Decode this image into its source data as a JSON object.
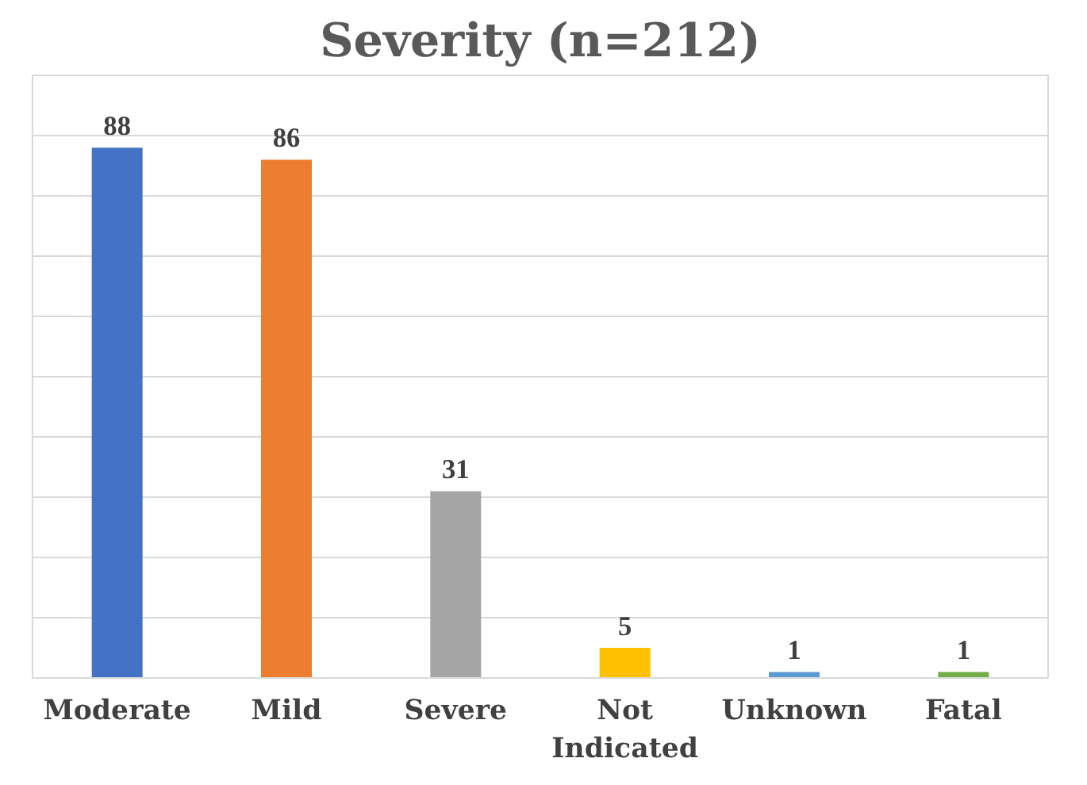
{
  "chart_data": {
    "type": "bar",
    "title": "Severity (n=212)",
    "categories": [
      "Moderate",
      "Mild",
      "Severe",
      "Not\nIndicated",
      "Unknown",
      "Fatal"
    ],
    "values": [
      88,
      86,
      31,
      5,
      1,
      1
    ],
    "colors": [
      "#4472c4",
      "#ed7d31",
      "#a5a5a5",
      "#ffc000",
      "#5b9bd5",
      "#70ad47"
    ],
    "ylim": [
      0,
      100
    ],
    "yticks": [
      {
        "value": 0,
        "label": null
      },
      {
        "value": 10,
        "label": null
      },
      {
        "value": 20,
        "label": null
      },
      {
        "value": 30,
        "label": null
      },
      {
        "value": 40,
        "label": null
      },
      {
        "value": 50,
        "label": null
      },
      {
        "value": 60,
        "label": null
      },
      {
        "value": 70,
        "label": null
      },
      {
        "value": 80,
        "label": null
      },
      {
        "value": 90,
        "label": null
      },
      {
        "value": 100,
        "label": null
      }
    ],
    "tick_labels": "x",
    "grid": "y",
    "data_labels": true
  }
}
